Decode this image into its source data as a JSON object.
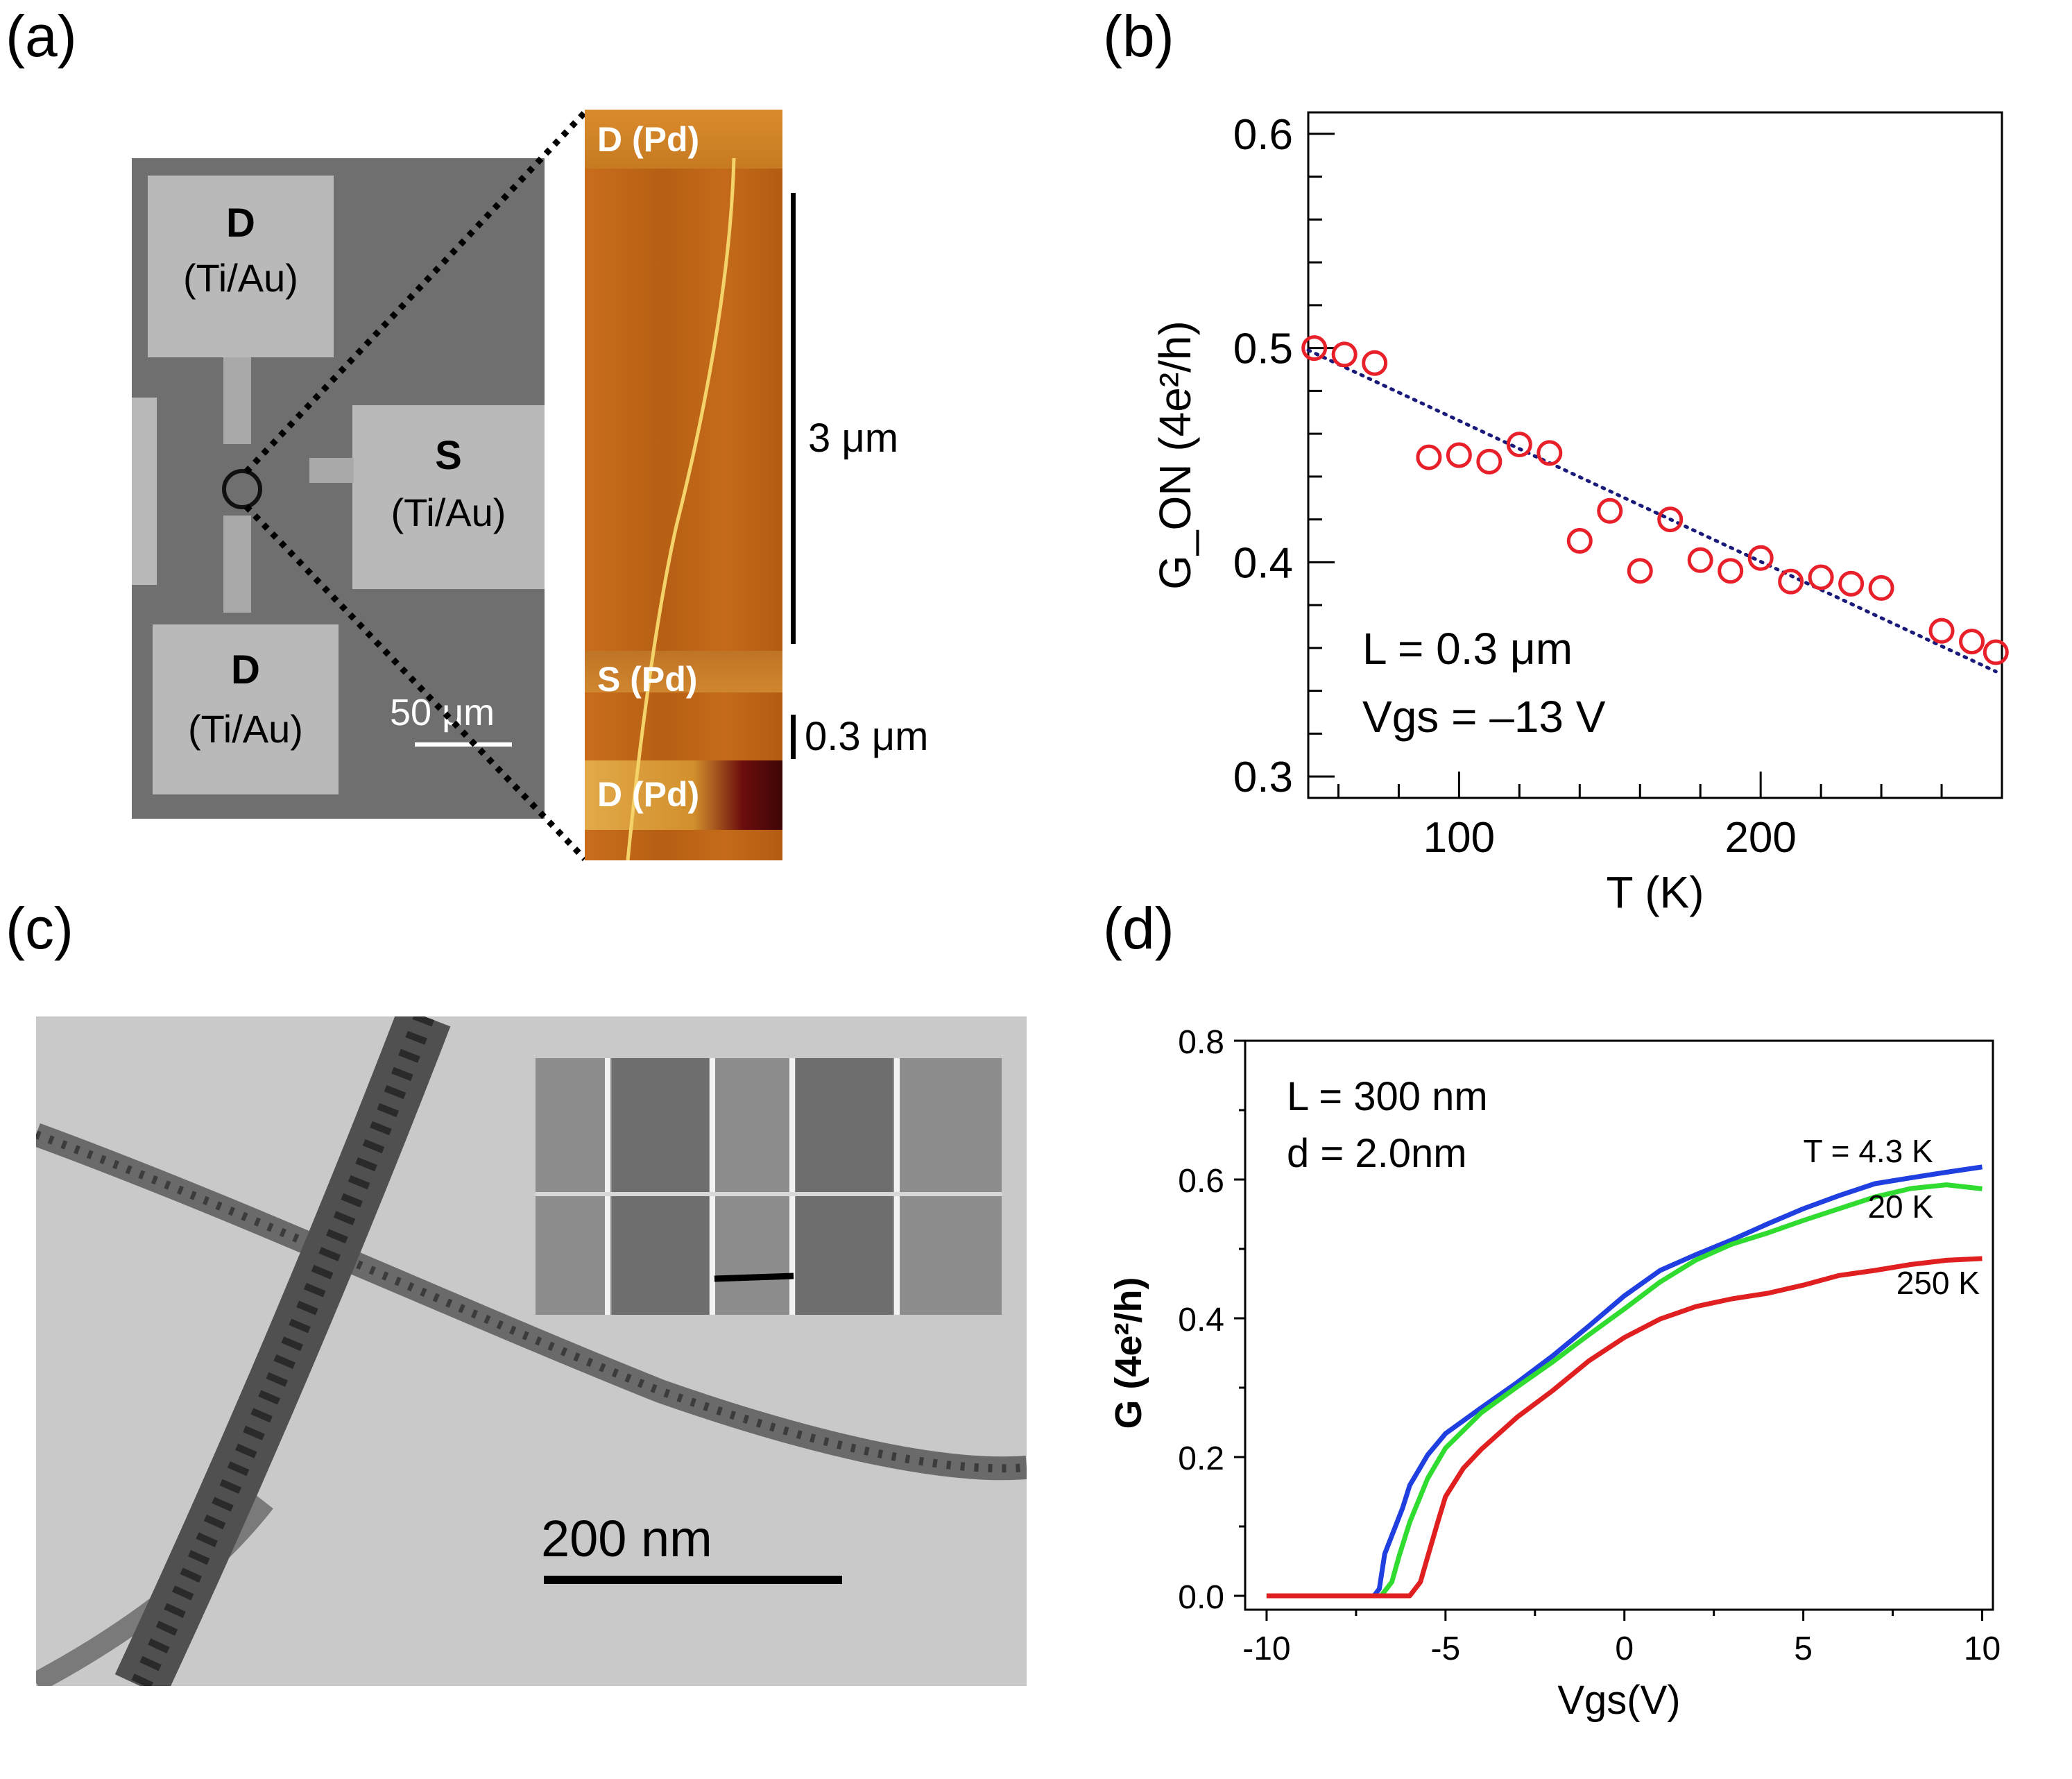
{
  "panels": {
    "a": {
      "label": "(a)",
      "sem": {
        "pad_top_name": "D",
        "pad_top_material": "(Ti/Au)",
        "pad_right_name": "S",
        "pad_right_material": "(Ti/Au)",
        "pad_bottom_name": "D",
        "pad_bottom_material": "(Ti/Au)",
        "scale_label": "50 μm"
      },
      "afm": {
        "top_electrode": "D (Pd)",
        "middle_electrode": "S (Pd)",
        "bottom_electrode": "D (Pd)",
        "scale_long": "3 μm",
        "scale_short": "0.3 μm"
      }
    },
    "b": {
      "label": "(b)"
    },
    "c": {
      "label": "(c)",
      "scale_label": "200 nm"
    },
    "d": {
      "label": "(d)"
    }
  },
  "chart_data": [
    {
      "panel": "b",
      "type": "scatter",
      "xlabel": "T (K)",
      "ylabel": "G_ON (4e²/h)",
      "xlim": [
        50,
        280
      ],
      "ylim": [
        0.29,
        0.61
      ],
      "xticks": [
        100,
        200
      ],
      "xtick_labels": [
        "100",
        "200"
      ],
      "yticks": [
        0.3,
        0.4,
        0.5,
        0.6
      ],
      "ytick_labels": [
        "0.3",
        "0.4",
        "0.5",
        "0.6"
      ],
      "annotations": [
        "L = 0.3 μm",
        "Vgs = –13 V"
      ],
      "marker_color": "#e8202a",
      "fit_color": "#1a1a7a",
      "series": [
        {
          "name": "G_ON",
          "x": [
            52,
            62,
            72,
            90,
            100,
            110,
            120,
            130,
            140,
            150,
            160,
            170,
            180,
            190,
            200,
            210,
            220,
            230,
            240,
            260,
            270,
            278
          ],
          "y": [
            0.5,
            0.497,
            0.493,
            0.449,
            0.45,
            0.447,
            0.455,
            0.451,
            0.41,
            0.424,
            0.396,
            0.42,
            0.401,
            0.396,
            0.402,
            0.391,
            0.393,
            0.39,
            0.388,
            0.368,
            0.363,
            0.358
          ]
        }
      ],
      "fit": {
        "x": [
          50,
          278
        ],
        "y": [
          0.499,
          0.349
        ]
      }
    },
    {
      "panel": "d",
      "type": "line",
      "xlabel": "Vgs(V)",
      "ylabel": "G (4e²/h)",
      "xlim": [
        -10.6,
        10.3
      ],
      "ylim": [
        -0.02,
        0.8
      ],
      "xticks": [
        -10,
        -5,
        0,
        5,
        10
      ],
      "xtick_labels": [
        "-10",
        "-5",
        "0",
        "5",
        "10"
      ],
      "yticks": [
        0.0,
        0.2,
        0.4,
        0.6,
        0.8
      ],
      "ytick_labels": [
        "0.0",
        "0.2",
        "0.4",
        "0.6",
        "0.8"
      ],
      "annotations": [
        "L = 300 nm",
        "d = 2.0nm"
      ],
      "series": [
        {
          "name": "T = 4.3 K",
          "color": "#1f3fe0",
          "x": [
            -10,
            -7,
            -6.85,
            -6.7,
            -6.5,
            -6.2,
            -6.0,
            -5.5,
            -5.0,
            -4.0,
            -3.0,
            -2.0,
            -1.0,
            0.0,
            1.0,
            2.0,
            3.0,
            4.0,
            5.0,
            6.0,
            7.0,
            8.0,
            9.0,
            10.0
          ],
          "y": [
            0.0,
            0.0,
            0.01,
            0.06,
            0.09,
            0.13,
            0.16,
            0.2,
            0.23,
            0.27,
            0.31,
            0.35,
            0.39,
            0.43,
            0.465,
            0.49,
            0.515,
            0.54,
            0.56,
            0.575,
            0.59,
            0.6,
            0.612,
            0.622
          ]
        },
        {
          "name": "20 K",
          "color": "#2fdc2f",
          "x": [
            -10,
            -6.8,
            -6.5,
            -6.3,
            -6.0,
            -5.5,
            -5.0,
            -4.0,
            -3.0,
            -2.0,
            -1.0,
            0.0,
            1.0,
            2.0,
            3.0,
            4.0,
            5.0,
            6.0,
            7.0,
            8.0,
            9.0,
            10.0
          ],
          "y": [
            0.0,
            0.0,
            0.02,
            0.06,
            0.11,
            0.17,
            0.21,
            0.26,
            0.3,
            0.34,
            0.38,
            0.415,
            0.45,
            0.48,
            0.505,
            0.525,
            0.545,
            0.56,
            0.573,
            0.583,
            0.59,
            0.588
          ]
        },
        {
          "name": "250 K",
          "color": "#e02020",
          "x": [
            -10,
            -6.0,
            -5.7,
            -5.5,
            -5.2,
            -5.0,
            -4.5,
            -4.0,
            -3.0,
            -2.0,
            -1.0,
            0.0,
            1.0,
            2.0,
            3.0,
            4.0,
            5.0,
            6.0,
            7.0,
            8.0,
            9.0,
            10.0
          ],
          "y": [
            0.0,
            0.0,
            0.02,
            0.06,
            0.11,
            0.14,
            0.18,
            0.21,
            0.26,
            0.3,
            0.34,
            0.37,
            0.395,
            0.415,
            0.43,
            0.44,
            0.45,
            0.46,
            0.465,
            0.475,
            0.485,
            0.49
          ]
        }
      ]
    }
  ]
}
